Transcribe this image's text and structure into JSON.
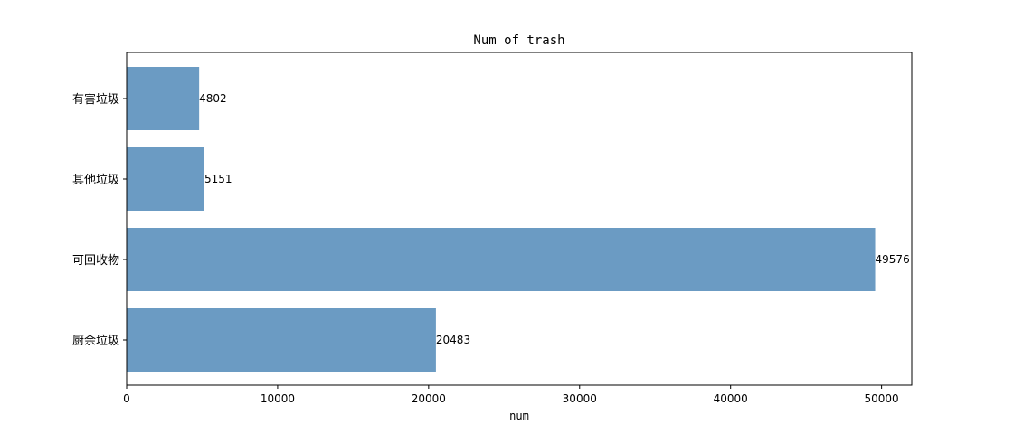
{
  "chart_data": {
    "type": "bar",
    "orientation": "horizontal",
    "title": "Num of trash",
    "xlabel": "num",
    "ylabel": "",
    "categories": [
      "有害垃圾",
      "其他垃圾",
      "可回收物",
      "厨余垃圾"
    ],
    "values": [
      4802,
      5151,
      49576,
      20483
    ],
    "xlim": [
      0,
      52000
    ],
    "xticks": [
      0,
      10000,
      20000,
      30000,
      40000,
      50000
    ],
    "xtick_labels": [
      "0",
      "10000",
      "20000",
      "30000",
      "40000",
      "50000"
    ],
    "bar_color": "#6b9bc3",
    "grid": false,
    "legend": "none"
  }
}
